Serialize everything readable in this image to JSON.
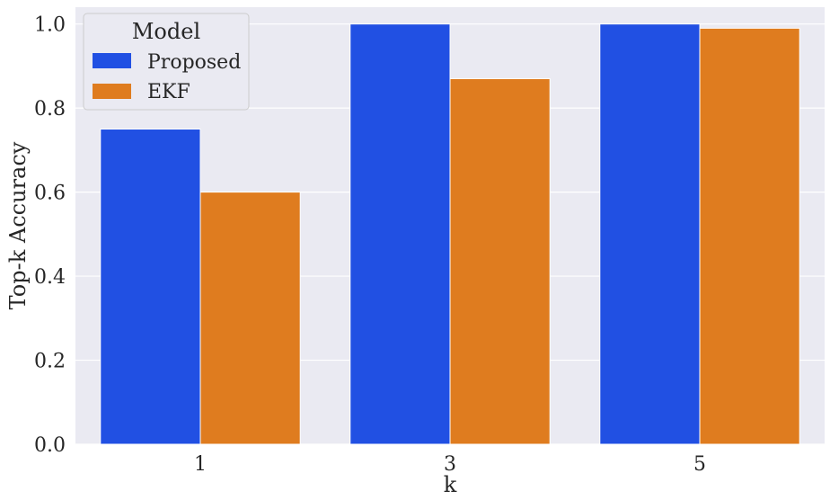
{
  "chart_data": {
    "type": "bar",
    "categories": [
      "1",
      "3",
      "5"
    ],
    "series": [
      {
        "name": "Proposed",
        "values": [
          0.75,
          1.0,
          1.0
        ],
        "color": "#2150e3"
      },
      {
        "name": "EKF",
        "values": [
          0.6,
          0.87,
          0.99
        ],
        "color": "#df7c1f"
      }
    ],
    "xlabel": "k",
    "ylabel": "Top-k Accuracy",
    "ylim": [
      0,
      1.04
    ],
    "yticks": [
      "0.0",
      "0.2",
      "0.4",
      "0.6",
      "0.8",
      "1.0"
    ],
    "grid": true,
    "legend": {
      "title": "Model",
      "placement": "top-left"
    },
    "background": "#eaeaf2"
  }
}
